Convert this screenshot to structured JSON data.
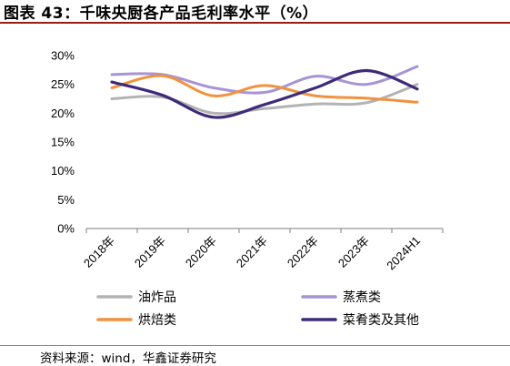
{
  "title": "图表 43：千味央厨各产品毛利率水平（%）",
  "source": "资料来源：wind，华鑫证券研究",
  "chart_data": {
    "type": "line",
    "categories": [
      "2018年",
      "2019年",
      "2020年",
      "2021年",
      "2022年",
      "2023年",
      "2024H1"
    ],
    "yticks": [
      "0%",
      "5%",
      "10%",
      "15%",
      "20%",
      "25%",
      "30%"
    ],
    "ylim": [
      0,
      30
    ],
    "grid": false,
    "legend_position": "bottom",
    "series": [
      {
        "name": "油炸品",
        "color": "#b3b3b3",
        "values": [
          22.5,
          22.8,
          20.0,
          20.8,
          21.6,
          21.8,
          25.0
        ]
      },
      {
        "name": "蒸煮类",
        "color": "#a694d4",
        "values": [
          26.7,
          26.7,
          24.4,
          23.6,
          26.4,
          25.0,
          28.1
        ]
      },
      {
        "name": "烘焙类",
        "color": "#f2923d",
        "values": [
          24.4,
          26.5,
          23.0,
          24.8,
          23.0,
          22.6,
          21.9
        ]
      },
      {
        "name": "菜肴类及其他",
        "color": "#3e2a7a",
        "values": [
          25.4,
          23.1,
          19.3,
          21.5,
          24.4,
          27.4,
          24.2
        ]
      }
    ]
  }
}
